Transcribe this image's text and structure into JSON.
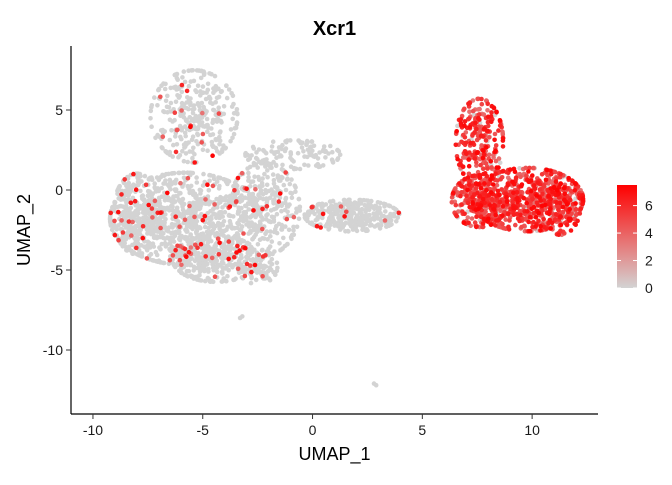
{
  "chart_data": {
    "type": "scatter",
    "title": "Xcr1",
    "xlabel": "UMAP_1",
    "ylabel": "UMAP_2",
    "xlim": [
      -11,
      13
    ],
    "ylim": [
      -14,
      9
    ],
    "xticks": [
      -10,
      -5,
      0,
      5,
      10
    ],
    "yticks": [
      -10,
      -5,
      0,
      5
    ],
    "grid": false,
    "legend": {
      "position": "right",
      "type": "colorbar",
      "min": 0,
      "max": 7.5,
      "ticks": [
        0,
        2,
        4,
        6
      ],
      "low_color": "#D3D3D3",
      "high_color": "#FF0000"
    },
    "clusters": [
      {
        "name": "left-top-lobe",
        "cx": -5.4,
        "cy": 4.6,
        "sx": 1.1,
        "sy": 1.6,
        "n": 320,
        "expr_rate": 0.05
      },
      {
        "name": "left-main-body",
        "cx": -5.8,
        "cy": -1.8,
        "sx": 1.9,
        "sy": 1.6,
        "n": 820,
        "expr_rate": 0.05
      },
      {
        "name": "left-west-lobe",
        "cx": -8.0,
        "cy": -1.5,
        "sx": 0.6,
        "sy": 1.4,
        "n": 260,
        "expr_rate": 0.06
      },
      {
        "name": "left-lower-lobe",
        "cx": -4.4,
        "cy": -4.3,
        "sx": 1.1,
        "sy": 0.8,
        "n": 300,
        "expr_rate": 0.04
      },
      {
        "name": "left-east-arm",
        "cx": -2.2,
        "cy": -1.2,
        "sx": 0.9,
        "sy": 1.6,
        "n": 300,
        "expr_rate": 0.04
      },
      {
        "name": "left-bottom-tail",
        "cx": -2.5,
        "cy": -4.8,
        "sx": 0.5,
        "sy": 0.6,
        "n": 90,
        "expr_rate": 0.05
      },
      {
        "name": "left-top-bridge",
        "cx": -0.9,
        "cy": 2.2,
        "sx": 1.2,
        "sy": 0.5,
        "n": 110,
        "expr_rate": 0.03
      },
      {
        "name": "middle-strip",
        "cx": 1.8,
        "cy": -1.6,
        "sx": 1.2,
        "sy": 0.55,
        "n": 340,
        "expr_rate": 0.03
      },
      {
        "name": "right-main-blob",
        "cx": 9.8,
        "cy": -0.6,
        "sx": 1.4,
        "sy": 1.1,
        "n": 620,
        "expr_rate": 0.92
      },
      {
        "name": "right-west-arm",
        "cx": 7.6,
        "cy": -0.7,
        "sx": 0.7,
        "sy": 0.9,
        "n": 260,
        "expr_rate": 0.92
      },
      {
        "name": "right-upper-arm",
        "cx": 7.6,
        "cy": 3.0,
        "sx": 0.6,
        "sy": 1.5,
        "n": 260,
        "expr_rate": 0.95
      },
      {
        "name": "right-east-edge",
        "cx": 11.3,
        "cy": -1.0,
        "sx": 0.5,
        "sy": 1.0,
        "n": 130,
        "expr_rate": 0.8
      }
    ],
    "outliers": [
      {
        "x": -3.3,
        "y": -8.0
      },
      {
        "x": -3.2,
        "y": -7.9
      },
      {
        "x": 2.8,
        "y": -12.1
      },
      {
        "x": 2.9,
        "y": -12.2
      }
    ]
  }
}
